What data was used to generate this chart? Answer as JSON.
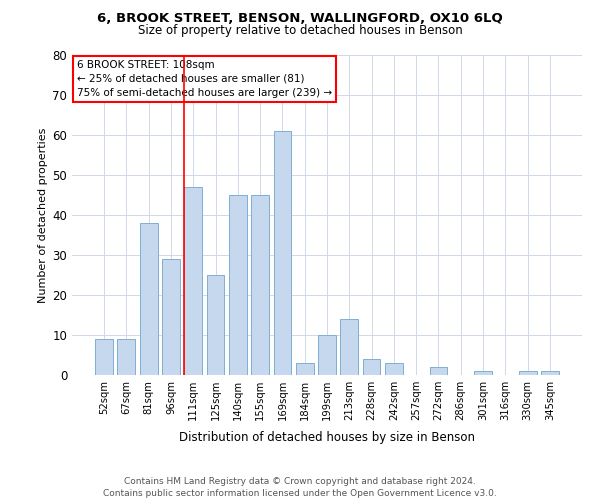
{
  "title1": "6, BROOK STREET, BENSON, WALLINGFORD, OX10 6LQ",
  "title2": "Size of property relative to detached houses in Benson",
  "xlabel": "Distribution of detached houses by size in Benson",
  "ylabel": "Number of detached properties",
  "footnote": "Contains HM Land Registry data © Crown copyright and database right 2024.\nContains public sector information licensed under the Open Government Licence v3.0.",
  "categories": [
    "52sqm",
    "67sqm",
    "81sqm",
    "96sqm",
    "111sqm",
    "125sqm",
    "140sqm",
    "155sqm",
    "169sqm",
    "184sqm",
    "199sqm",
    "213sqm",
    "228sqm",
    "242sqm",
    "257sqm",
    "272sqm",
    "286sqm",
    "301sqm",
    "316sqm",
    "330sqm",
    "345sqm"
  ],
  "values": [
    9,
    9,
    38,
    29,
    47,
    25,
    45,
    45,
    61,
    3,
    10,
    14,
    4,
    3,
    0,
    2,
    0,
    1,
    0,
    1,
    1
  ],
  "bar_color": "#c5d8ed",
  "bar_edge_color": "#7fafd4",
  "annotation_line1": "6 BROOK STREET: 108sqm",
  "annotation_line2": "← 25% of detached houses are smaller (81)",
  "annotation_line3": "75% of semi-detached houses are larger (239) →",
  "vline_color": "red",
  "vline_pos": 3.6,
  "ylim": [
    0,
    80
  ],
  "yticks": [
    0,
    10,
    20,
    30,
    40,
    50,
    60,
    70,
    80
  ],
  "background_color": "#ffffff",
  "grid_color": "#d0d8e8"
}
